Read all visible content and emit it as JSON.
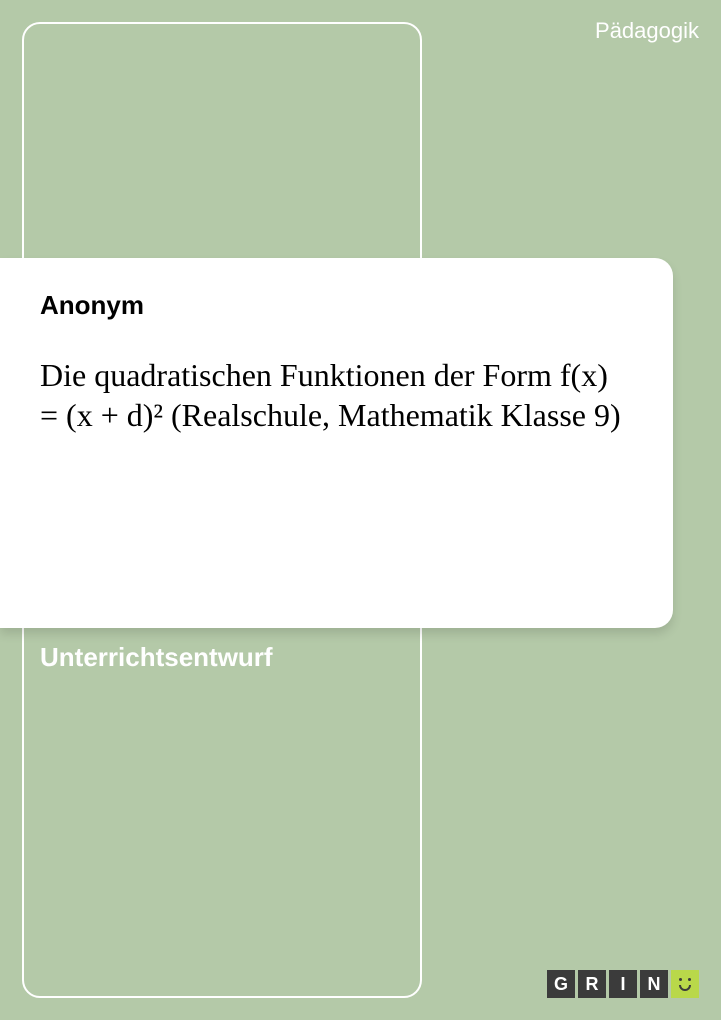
{
  "cover": {
    "background_color": "#b4c9a8",
    "frame_border_color": "#ffffff",
    "card_background": "#ffffff",
    "category": "Pädagogik",
    "category_color": "#ffffff",
    "category_fontsize": 22,
    "author": "Anonym",
    "author_fontsize": 26,
    "author_weight": "bold",
    "title": "Die quadratischen Funktionen der Form f(x) = (x + d)² (Realschule, Mathematik Klasse 9)",
    "title_fontsize": 32,
    "title_font": "Georgia",
    "doc_type": "Unterrichtsentwurf",
    "doc_type_color": "#ffffff",
    "doc_type_fontsize": 26
  },
  "logo": {
    "letters": [
      "G",
      "R",
      "I",
      "N"
    ],
    "box_bg": "#3b3b3b",
    "box_fg": "#ffffff",
    "smile_bg": "#b9d84a",
    "smile_fg": "#3b3b3b"
  }
}
